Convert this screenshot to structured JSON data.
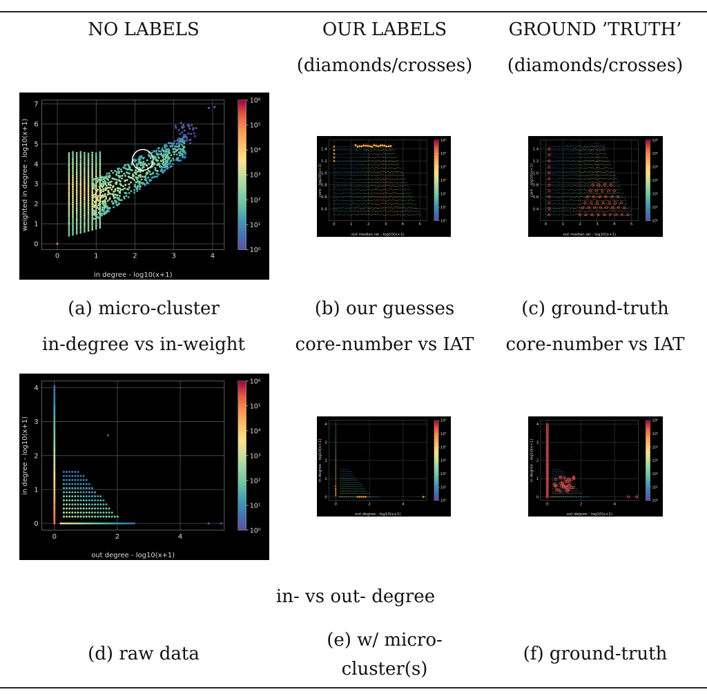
{
  "headers": {
    "col1": "NO LABELS",
    "col2_line1": "OUR LABELS",
    "col2_line2": "(diamonds/crosses)",
    "col3_line1": "GROUND ’TRUTH’",
    "col3_line2": "(diamonds/crosses)"
  },
  "captions": {
    "a_line1": "(a) micro-cluster",
    "a_line2": "in-degree vs in-weight",
    "b_line1": "(b) our guesses",
    "b_line2": "core-number vs IAT",
    "c_line1": "(c) ground-truth",
    "c_line2": "core-number vs IAT",
    "row2_title": "in- vs out- degree",
    "d": "(d) raw data",
    "e_line1": "(e) w/ micro-",
    "e_line2": "cluster(s)",
    "f": "(f) ground-truth"
  },
  "colorbar_ticks": [
    "10⁰",
    "10¹",
    "10²",
    "10³",
    "10⁴",
    "10⁵",
    "10⁶"
  ],
  "colors": {
    "accent_marker": "#f5a623",
    "gt_marker": "#e04b4b"
  },
  "chart_data": [
    {
      "id": "a",
      "type": "heatmap",
      "xlabel": "in degree - log10(x+1)",
      "ylabel": "weighted in degree - log10(x+1)",
      "xticks": [
        "0",
        "1",
        "2",
        "3",
        "4"
      ],
      "yticks": [
        "0",
        "1",
        "2",
        "3",
        "4",
        "5",
        "6",
        "7"
      ],
      "xlim": [
        -0.4,
        4.3
      ],
      "ylim": [
        -0.3,
        7.2
      ],
      "annotation": "white circle around micro-cluster near (2.2, 4.2)"
    },
    {
      "id": "b",
      "type": "heatmap",
      "xlabel": "out median iat - log10(x+1)",
      "ylabel": "core - log10(x+1)",
      "xticks": [
        "0",
        "1",
        "2",
        "3",
        "4",
        "5"
      ],
      "yticks": [
        "0.4",
        "0.6",
        "0.8",
        "1.0",
        "1.2",
        "1.4"
      ],
      "xlim": [
        -0.3,
        5.4
      ],
      "ylim": [
        0.2,
        1.55
      ],
      "markers": "orange diamonds along core ≈ 1.45 for out median iat ≈ 1.2–3.3"
    },
    {
      "id": "c",
      "type": "heatmap",
      "xlabel": "out median iat - log10(x+1)",
      "ylabel": "core - log10(x+1)",
      "xticks": [
        "0",
        "1",
        "2",
        "3",
        "4",
        "5"
      ],
      "yticks": [
        "0.4",
        "0.6",
        "0.8",
        "1.0",
        "1.2",
        "1.4"
      ],
      "xlim": [
        -0.3,
        5.4
      ],
      "ylim": [
        0.2,
        1.55
      ],
      "markers": "red crosses along x≈0 column and on core rows for x≈2–5"
    },
    {
      "id": "d",
      "type": "heatmap",
      "xlabel": "out degree - log10(x+1)",
      "ylabel": "in degree - log10(x+1)",
      "xticks": [
        "0",
        "2",
        "4"
      ],
      "yticks": [
        "0",
        "1",
        "2",
        "3",
        "4"
      ],
      "xlim": [
        -0.4,
        5.4
      ],
      "ylim": [
        -0.2,
        4.2
      ]
    },
    {
      "id": "e",
      "type": "heatmap",
      "xlabel": "out degree - log10(x+1)",
      "ylabel": "in degree - log10(x+1)",
      "xticks": [
        "0",
        "2",
        "4"
      ],
      "yticks": [
        "0",
        "1",
        "2",
        "3",
        "4"
      ],
      "xlim": [
        -0.4,
        5.4
      ],
      "ylim": [
        -0.2,
        4.2
      ],
      "markers": "orange diamonds at in degree 0 near out degree ≈ 1.3–1.8 and 5.2"
    },
    {
      "id": "f",
      "type": "heatmap",
      "xlabel": "out degree - log10(x+1)",
      "ylabel": "in degree - log10(x+1)",
      "xticks": [
        "0",
        "2",
        "4"
      ],
      "yticks": [
        "0",
        "1",
        "2",
        "3",
        "4"
      ],
      "xlim": [
        -0.4,
        5.4
      ],
      "ylim": [
        -0.2,
        4.2
      ],
      "markers": "red crosses along x≈0 column, near (0.5–1.5, 0.5–1) and at (4.8, 0), (5.3, 0)"
    }
  ]
}
